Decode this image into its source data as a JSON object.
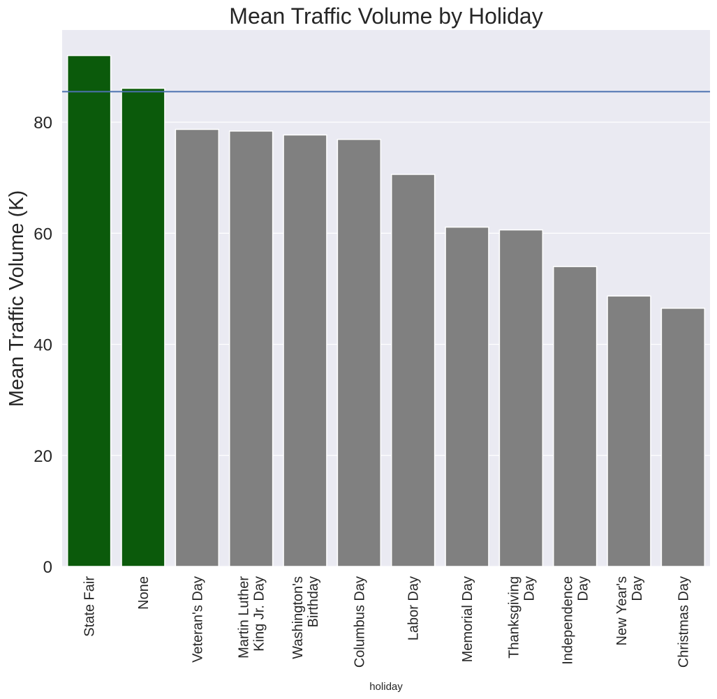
{
  "chart_data": {
    "type": "bar",
    "title": "Mean Traffic Volume by Holiday",
    "xlabel": "holiday",
    "ylabel": "Mean Traffic Volume (K)",
    "categories": [
      [
        "State Fair"
      ],
      [
        "None"
      ],
      [
        "Veteran's Day"
      ],
      [
        "Martin Luther",
        "King Jr. Day"
      ],
      [
        "Washington's",
        "Birthday"
      ],
      [
        "Columbus Day"
      ],
      [
        "Labor Day"
      ],
      [
        "Memorial Day"
      ],
      [
        "Thanksgiving",
        "Day"
      ],
      [
        "Independence",
        "Day"
      ],
      [
        "New Year's",
        "Day"
      ],
      [
        "Christmas Day"
      ]
    ],
    "values": [
      92.0,
      86.1,
      78.7,
      78.4,
      77.7,
      76.9,
      70.6,
      61.1,
      60.6,
      54.0,
      48.7,
      46.5
    ],
    "bar_colors": [
      "#0b5a0b",
      "#0b5a0b",
      "#808080",
      "#808080",
      "#808080",
      "#808080",
      "#808080",
      "#808080",
      "#808080",
      "#808080",
      "#808080",
      "#808080"
    ],
    "reference_line": {
      "value": 85.5,
      "color": "#4c72b0"
    },
    "ylim": [
      0,
      96.6
    ],
    "yticks": [
      0,
      20,
      40,
      60,
      80
    ],
    "grid": true,
    "background": "#eaeaf2"
  }
}
